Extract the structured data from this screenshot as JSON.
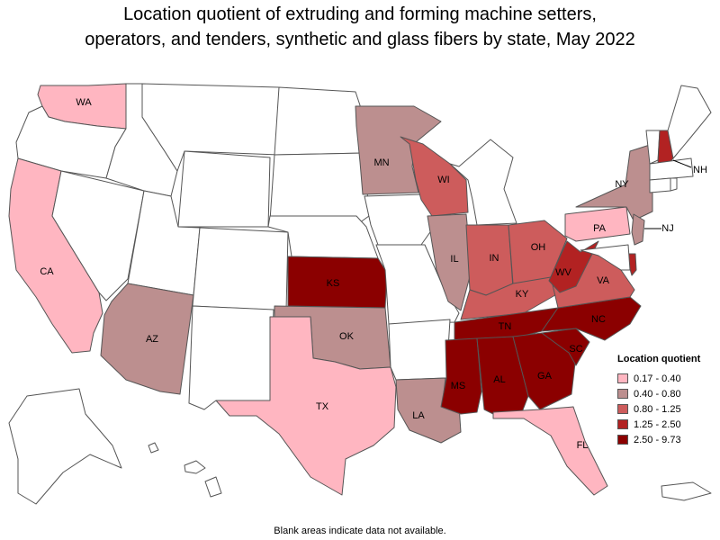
{
  "title_line1": "Location quotient of extruding and forming machine setters,",
  "title_line2": "operators, and tenders, synthetic and glass fibers by state, May 2022",
  "legend": {
    "title": "Location quotient",
    "bins": [
      {
        "label": "0.17 - 0.40",
        "color": "#ffb6c1"
      },
      {
        "label": "0.40 - 0.80",
        "color": "#bc8f8f"
      },
      {
        "label": "0.80 - 1.25",
        "color": "#cd5c5c"
      },
      {
        "label": "1.25 - 2.50",
        "color": "#b22222"
      },
      {
        "label": "2.50 - 9.73",
        "color": "#8b0000"
      }
    ]
  },
  "footnote": "Blank areas indicate data not available.",
  "colors": {
    "no_data": "#ffffff",
    "border": "#555555"
  },
  "chart_data": {
    "type": "choropleth",
    "states": [
      {
        "abbr": "WA",
        "bin": 0
      },
      {
        "abbr": "CA",
        "bin": 0
      },
      {
        "abbr": "TX",
        "bin": 0
      },
      {
        "abbr": "PA",
        "bin": 0
      },
      {
        "abbr": "FL",
        "bin": 0
      },
      {
        "abbr": "MN",
        "bin": 1
      },
      {
        "abbr": "NY",
        "bin": 1
      },
      {
        "abbr": "IL",
        "bin": 1
      },
      {
        "abbr": "AZ",
        "bin": 1
      },
      {
        "abbr": "OK",
        "bin": 1
      },
      {
        "abbr": "LA",
        "bin": 1
      },
      {
        "abbr": "NJ",
        "bin": 1
      },
      {
        "abbr": "WI",
        "bin": 2
      },
      {
        "abbr": "IN",
        "bin": 2
      },
      {
        "abbr": "OH",
        "bin": 2
      },
      {
        "abbr": "KY",
        "bin": 2
      },
      {
        "abbr": "VA",
        "bin": 2
      },
      {
        "abbr": "NH",
        "bin": 3
      },
      {
        "abbr": "WV",
        "bin": 3
      },
      {
        "abbr": "DE",
        "bin": 3
      },
      {
        "abbr": "KS",
        "bin": 4
      },
      {
        "abbr": "TN",
        "bin": 4
      },
      {
        "abbr": "NC",
        "bin": 4
      },
      {
        "abbr": "SC",
        "bin": 4
      },
      {
        "abbr": "GA",
        "bin": 4
      },
      {
        "abbr": "AL",
        "bin": 4
      },
      {
        "abbr": "MS",
        "bin": 4
      }
    ]
  }
}
